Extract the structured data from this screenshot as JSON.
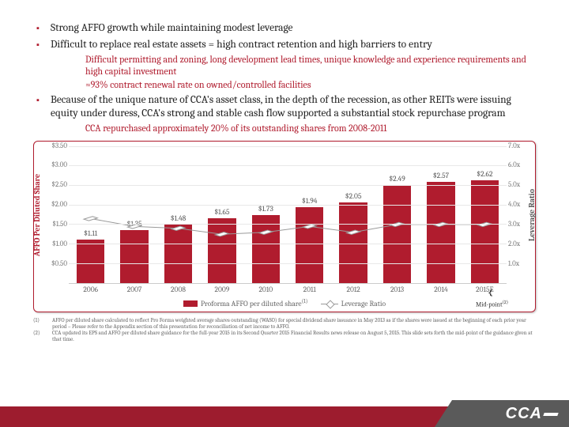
{
  "bullets": {
    "b1": "Strong AFFO growth while maintaining modest leverage",
    "b2": "Difficult to replace real estate assets = high contract retention and high barriers to entry",
    "b2s1": "Difficult permitting and zoning, long development lead times, unique knowledge and experience requirements and high capital investment",
    "b2s2": "≈93% contract renewal rate on owned/controlled facilities",
    "b3": "Because of the unique nature of CCA's asset class, in the depth of the recession, as other REITs were issuing equity under duress, CCA's strong and stable cash flow supported a substantial stock repurchase program",
    "b3s1": "CCA repurchased approximately 20% of its outstanding shares from 2008-2011"
  },
  "chart": {
    "left_axis_label": "AFFO Per Diluted Share",
    "right_axis_label": "Leverage Ratio",
    "y_left_max": 3.5,
    "y_left_step": 0.5,
    "y_right_max": 7.0,
    "y_right_step": 1.0,
    "categories": [
      "2006",
      "2007",
      "2008",
      "2009",
      "2010",
      "2011",
      "2012",
      "2013",
      "2014",
      "2015E"
    ],
    "bar_values": [
      1.11,
      1.35,
      1.48,
      1.65,
      1.73,
      1.94,
      2.05,
      2.49,
      2.57,
      2.62
    ],
    "bar_labels": [
      "$1.11",
      "$1.35",
      "$1.48",
      "$1.65",
      "$1.73",
      "$1.94",
      "$2.05",
      "$2.49",
      "$2.57",
      "$2.62"
    ],
    "leverage": [
      3.3,
      2.9,
      2.8,
      2.5,
      2.6,
      2.9,
      2.6,
      3.0,
      3.0,
      3.0
    ],
    "bar_color": "#b01c2e",
    "line_color": "#9a9a9a",
    "legend_bar": "Proforma AFFO per diluted share",
    "legend_line": "Leverage Ratio",
    "midpoint_label": "Mid-point"
  },
  "footnotes": {
    "n1": "(1)",
    "t1": "AFFO per diluted share calculated to reflect Pro Forma weighted average shares outstanding (WASO) for special dividend share issuance in May 2013 as if the shares were issued at the beginning of each prior year period – Please refer to the Appendix section of this presentation for reconciliation of net income to AFFO.",
    "n2": "(2)",
    "t2": "CCA updated its EPS and AFFO per diluted share guidance for the full-year 2015 in its Second Quarter 2015 Financial Results news release on August 5, 2015.  This slide sets forth the mid-point of the guidance given at that time."
  },
  "logo": "CCA"
}
